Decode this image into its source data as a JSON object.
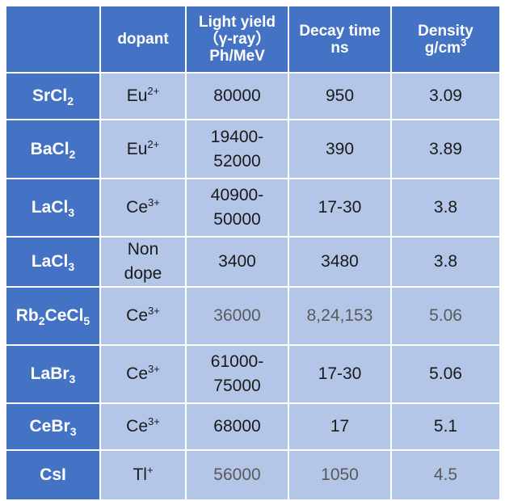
{
  "header": {
    "dopant": "dopant",
    "light_yield": [
      "Light yield",
      "（γ-ray）",
      "Ph/MeV"
    ],
    "decay_time": [
      "Decay time",
      "ns"
    ],
    "density": [
      "Density",
      "g/cm",
      "3"
    ]
  },
  "rows": [
    {
      "formula": [
        [
          "Sr",
          ""
        ],
        [
          "Cl",
          "2"
        ]
      ],
      "dopant_base": "Eu",
      "dopant_sup": "2+",
      "light_yield": "80000",
      "decay": "950",
      "density": "3.09"
    },
    {
      "formula": [
        [
          "Ba",
          ""
        ],
        [
          "Cl",
          "2"
        ]
      ],
      "dopant_base": "Eu",
      "dopant_sup": "2+",
      "light_yield": "19400-\n52000",
      "decay": "390",
      "density": "3.89"
    },
    {
      "formula": [
        [
          "La",
          ""
        ],
        [
          "Cl",
          "3"
        ]
      ],
      "dopant_base": "Ce",
      "dopant_sup": "3+",
      "light_yield": "40900-\n50000",
      "decay": "17-30",
      "density": "3.8"
    },
    {
      "formula": [
        [
          "La",
          ""
        ],
        [
          "Cl",
          "3"
        ]
      ],
      "dopant_base": "Non\ndope",
      "dopant_sup": "",
      "light_yield": "3400",
      "decay": "3480",
      "density": "3.8"
    },
    {
      "formula": [
        [
          "Rb",
          "2"
        ],
        [
          "Ce",
          ""
        ],
        [
          "Cl",
          "5"
        ]
      ],
      "dopant_base": "Ce",
      "dopant_sup": "3+",
      "light_yield": "36000",
      "decay": "8,24,153",
      "density": "5.06",
      "gray": true
    },
    {
      "formula": [
        [
          "La",
          ""
        ],
        [
          "Br",
          "3"
        ]
      ],
      "dopant_base": "Ce",
      "dopant_sup": "3+",
      "light_yield": "61000-\n75000",
      "decay": "17-30",
      "density": "5.06"
    },
    {
      "formula": [
        [
          "Ce",
          ""
        ],
        [
          "Br",
          "3"
        ]
      ],
      "dopant_base": "Ce",
      "dopant_sup": "3+",
      "light_yield": "68000",
      "decay": "17",
      "density": "5.1"
    },
    {
      "formula": [
        [
          "CsI",
          ""
        ]
      ],
      "dopant_base": "Tl",
      "dopant_sup": "+",
      "light_yield": "56000",
      "decay": "1050",
      "density": "4.5",
      "gray": true
    }
  ]
}
